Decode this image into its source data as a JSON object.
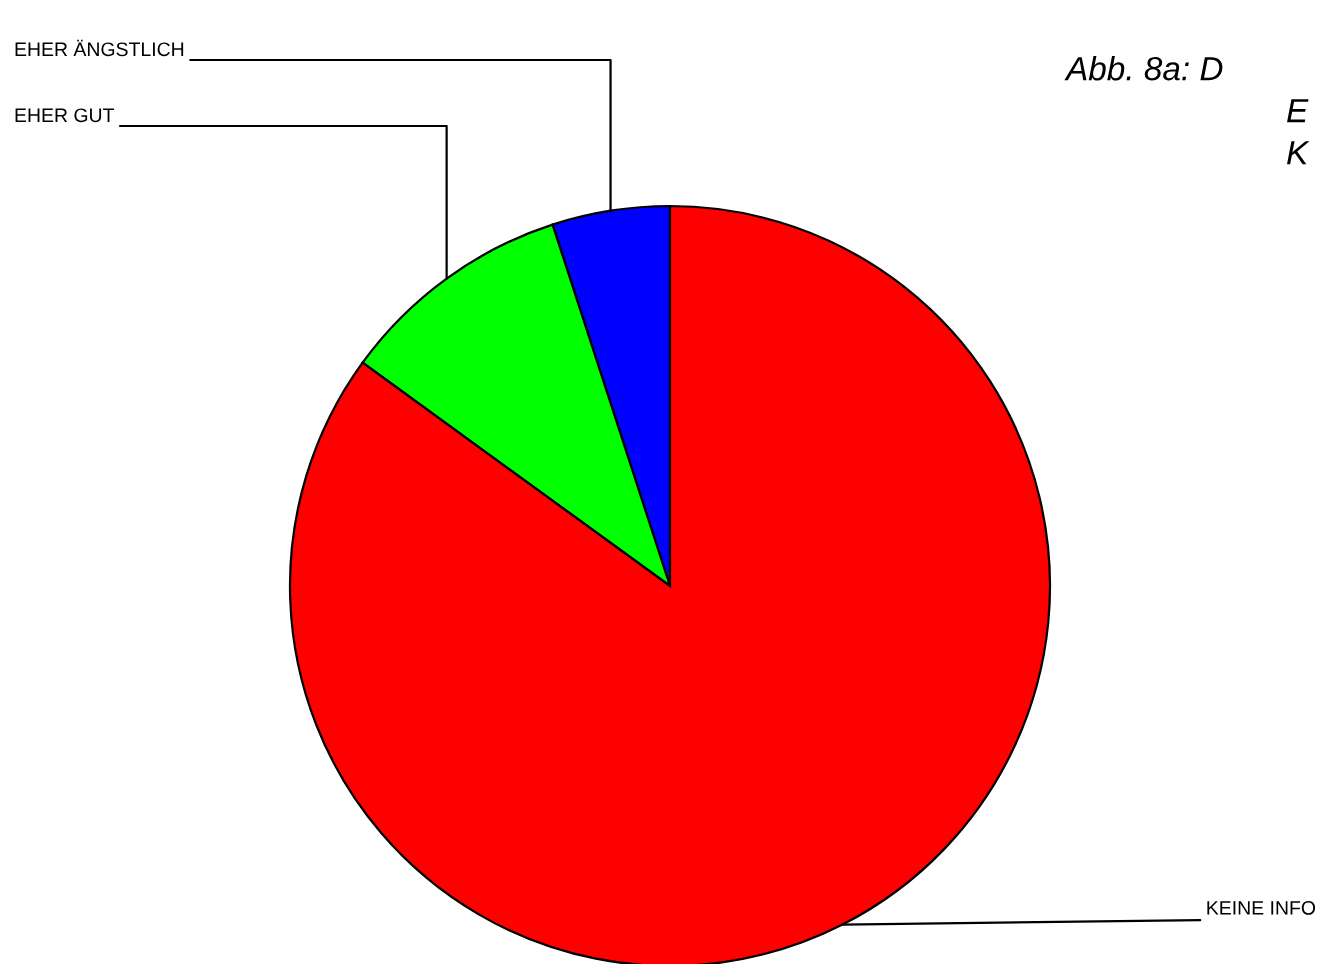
{
  "chart_data": {
    "type": "pie",
    "title": "Abb. 8a: D\nE\nK",
    "categories": [
      "EHER ÄNGSTLICH",
      "EHER GUT",
      "KEINE INFO"
    ],
    "values": [
      5,
      10,
      85
    ],
    "colors": [
      "#0000ff",
      "#00ff00",
      "#ff0000"
    ]
  }
}
